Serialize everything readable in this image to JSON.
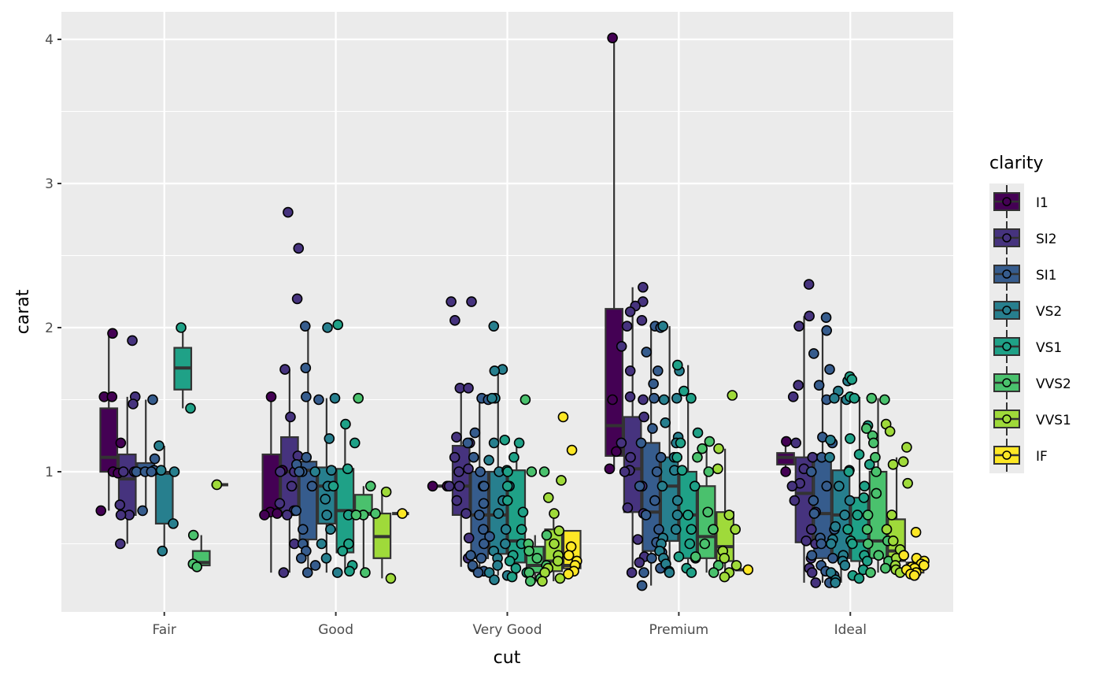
{
  "chart_data": {
    "type": "boxplot",
    "title": "",
    "xlabel": "cut",
    "ylabel": "carat",
    "ylim": [
      0.12,
      4.2
    ],
    "yticks": [
      1,
      2,
      3,
      4
    ],
    "ytick_labels": [
      "1",
      "2",
      "3",
      "4"
    ],
    "grid": true,
    "categories": [
      "Fair",
      "Good",
      "Very Good",
      "Premium",
      "Ideal"
    ],
    "legend": {
      "title": "clarity",
      "position": "right",
      "entries": [
        {
          "name": "I1",
          "color": "#440154"
        },
        {
          "name": "SI2",
          "color": "#46337E"
        },
        {
          "name": "SI1",
          "color": "#365C8D"
        },
        {
          "name": "VS2",
          "color": "#277F8E"
        },
        {
          "name": "VS1",
          "color": "#1FA187"
        },
        {
          "name": "VVS2",
          "color": "#4AC16D"
        },
        {
          "name": "VVS1",
          "color": "#9FDA3A"
        },
        {
          "name": "IF",
          "color": "#FDE725"
        }
      ]
    },
    "groups": [
      {
        "cut": "Fair",
        "boxes": [
          {
            "clarity": "I1",
            "stats": [
              0.73,
              1.0,
              1.1,
              1.44,
              1.96
            ],
            "points": [
              1.96,
              1.52,
              1.52,
              1.2,
              1.0,
              1.0,
              0.73,
              0.99
            ]
          },
          {
            "clarity": "SI2",
            "stats": [
              0.5,
              0.7,
              0.95,
              1.12,
              1.52
            ],
            "points": [
              1.91,
              1.52,
              1.47,
              1.0,
              1.0,
              0.77,
              0.7,
              0.7,
              0.5
            ]
          },
          {
            "clarity": "SI1",
            "stats": [
              0.73,
              1.0,
              1.02,
              1.06,
              1.5
            ],
            "points": [
              1.5,
              1.09,
              1.01,
              1.0,
              1.0,
              1.0,
              0.73
            ]
          },
          {
            "clarity": "VS2",
            "stats": [
              0.45,
              0.64,
              0.99,
              1.0,
              1.18
            ],
            "points": [
              1.18,
              1.01,
              1.0,
              0.64,
              0.45
            ]
          },
          {
            "clarity": "VS1",
            "stats": [
              1.44,
              1.57,
              1.72,
              1.86,
              2.0
            ],
            "points": [
              2.0,
              1.44
            ]
          },
          {
            "clarity": "VVS2",
            "stats": [
              0.33,
              0.35,
              0.37,
              0.45,
              0.56
            ],
            "points": [
              0.56,
              0.36,
              0.34
            ]
          },
          {
            "clarity": "VVS1",
            "stats": [
              0.91,
              0.91,
              0.91,
              0.91,
              0.91
            ],
            "points": [
              0.91
            ]
          }
        ]
      },
      {
        "cut": "Good",
        "boxes": [
          {
            "clarity": "I1",
            "stats": [
              0.3,
              0.71,
              0.72,
              1.12,
              1.51
            ],
            "points": [
              1.52,
              1.01,
              0.72,
              0.71,
              0.7
            ]
          },
          {
            "clarity": "SI2",
            "stats": [
              0.3,
              0.72,
              1.0,
              1.24,
              1.71
            ],
            "points": [
              2.8,
              2.55,
              2.2,
              1.71,
              1.38,
              1.11,
              1.0,
              1.0,
              0.9,
              0.78,
              0.73,
              0.7,
              0.5,
              0.3
            ]
          },
          {
            "clarity": "SI1",
            "stats": [
              0.3,
              0.53,
              1.01,
              1.07,
              2.01
            ],
            "points": [
              2.01,
              1.72,
              1.52,
              1.5,
              1.1,
              1.05,
              1.0,
              1.0,
              0.9,
              0.73,
              0.6,
              0.5,
              0.45,
              0.4,
              0.35,
              0.3
            ]
          },
          {
            "clarity": "VS2",
            "stats": [
              0.3,
              0.64,
              0.9,
              1.03,
              1.51
            ],
            "points": [
              2.0,
              1.51,
              1.23,
              1.01,
              1.0,
              0.9,
              0.81,
              0.7,
              0.6,
              0.5,
              0.4,
              0.3
            ]
          },
          {
            "clarity": "VS1",
            "stats": [
              0.3,
              0.44,
              0.73,
              1.02,
              1.33
            ],
            "points": [
              2.02,
              1.33,
              1.2,
              1.02,
              0.9,
              0.7,
              0.5,
              0.45,
              0.35,
              0.31
            ]
          },
          {
            "clarity": "VVS2",
            "stats": [
              0.31,
              0.7,
              0.71,
              0.84,
              0.9
            ],
            "points": [
              1.51,
              0.9,
              0.71,
              0.7,
              0.7,
              0.3
            ]
          },
          {
            "clarity": "VVS1",
            "stats": [
              0.26,
              0.4,
              0.55,
              0.71,
              0.86
            ],
            "points": [
              0.86,
              0.26
            ]
          },
          {
            "clarity": "IF",
            "stats": [
              0.71,
              0.71,
              0.71,
              0.71,
              0.71
            ],
            "points": [
              0.71
            ]
          }
        ]
      },
      {
        "cut": "Very Good",
        "boxes": [
          {
            "clarity": "I1",
            "stats": [
              0.9,
              0.9,
              0.9,
              0.9,
              0.9
            ],
            "points": [
              0.9,
              0.9
            ]
          },
          {
            "clarity": "SI2",
            "stats": [
              0.34,
              0.7,
              0.9,
              1.18,
              1.58
            ],
            "points": [
              2.18,
              2.18,
              2.05,
              1.58,
              1.58,
              1.24,
              1.2,
              1.1,
              1.02,
              1.0,
              0.9,
              0.9,
              0.8,
              0.71,
              0.54,
              0.4,
              0.34
            ]
          },
          {
            "clarity": "SI1",
            "stats": [
              0.3,
              0.4,
              0.7,
              1.0,
              1.51
            ],
            "points": [
              1.51,
              1.5,
              1.27,
              1.2,
              1.1,
              1.0,
              0.9,
              0.9,
              0.78,
              0.7,
              0.6,
              0.55,
              0.5,
              0.42,
              0.4,
              0.35,
              0.31,
              0.3
            ]
          },
          {
            "clarity": "VS2",
            "stats": [
              0.28,
              0.43,
              0.7,
              1.0,
              1.7
            ],
            "points": [
              2.01,
              1.71,
              1.7,
              1.51,
              1.51,
              1.2,
              1.08,
              1.0,
              0.9,
              0.8,
              0.71,
              0.6,
              0.5,
              0.45,
              0.4,
              0.35,
              0.3,
              0.28,
              0.25
            ]
          },
          {
            "clarity": "VS1",
            "stats": [
              0.27,
              0.37,
              0.52,
              1.01,
              1.22
            ],
            "points": [
              1.22,
              1.2,
              1.1,
              1.01,
              1.0,
              0.9,
              0.8,
              0.72,
              0.6,
              0.5,
              0.42,
              0.38,
              0.33,
              0.3,
              0.27
            ]
          },
          {
            "clarity": "VVS2",
            "stats": [
              0.23,
              0.3,
              0.35,
              0.48,
              0.56
            ],
            "points": [
              1.5,
              1.0,
              1.0,
              0.56,
              0.5,
              0.45,
              0.4,
              0.35,
              0.3,
              0.26,
              0.24
            ]
          },
          {
            "clarity": "VVS1",
            "stats": [
              0.24,
              0.31,
              0.38,
              0.6,
              0.71
            ],
            "points": [
              0.94,
              0.82,
              0.71,
              0.59,
              0.5,
              0.42,
              0.38,
              0.33,
              0.3,
              0.26,
              0.24
            ]
          },
          {
            "clarity": "IF",
            "stats": [
              0.31,
              0.33,
              0.35,
              0.59,
              0.59
            ],
            "points": [
              1.38,
              1.15,
              0.48,
              0.42,
              0.38,
              0.35,
              0.31,
              0.29
            ]
          }
        ]
      },
      {
        "cut": "Premium",
        "boxes": [
          {
            "clarity": "I1",
            "stats": [
              1.02,
              1.11,
              1.32,
              2.13,
              4.01
            ],
            "points": [
              4.01,
              1.5,
              1.14,
              1.02
            ]
          },
          {
            "clarity": "SI2",
            "stats": [
              0.3,
              0.72,
              1.02,
              1.38,
              2.28
            ],
            "points": [
              2.28,
              2.18,
              2.15,
              2.11,
              2.05,
              2.01,
              1.87,
              1.7,
              1.52,
              1.5,
              1.38,
              1.2,
              1.1,
              1.01,
              1.0,
              0.9,
              0.75,
              0.71,
              0.53,
              0.41,
              0.37,
              0.3
            ]
          },
          {
            "clarity": "SI1",
            "stats": [
              0.21,
              0.45,
              0.72,
              1.2,
              2.01
            ],
            "points": [
              2.01,
              2.0,
              1.83,
              1.7,
              1.61,
              1.51,
              1.3,
              1.2,
              1.1,
              1.0,
              0.9,
              0.8,
              0.7,
              0.6,
              0.51,
              0.44,
              0.4,
              0.33,
              0.3,
              0.21
            ]
          },
          {
            "clarity": "VS2",
            "stats": [
              0.3,
              0.52,
              0.9,
              1.1,
              2.01
            ],
            "points": [
              2.01,
              1.7,
              1.51,
              1.5,
              1.34,
              1.24,
              1.2,
              1.1,
              1.01,
              0.9,
              0.8,
              0.7,
              0.6,
              0.54,
              0.5,
              0.45,
              0.4,
              0.36,
              0.31,
              0.3
            ]
          },
          {
            "clarity": "VS1",
            "stats": [
              0.3,
              0.4,
              0.7,
              1.0,
              1.74
            ],
            "points": [
              1.74,
              1.56,
              1.51,
              1.27,
              1.2,
              1.1,
              1.01,
              0.9,
              0.7,
              0.6,
              0.5,
              0.41,
              0.4,
              0.33,
              0.3
            ]
          },
          {
            "clarity": "VVS2",
            "stats": [
              0.3,
              0.4,
              0.55,
              0.9,
              1.16
            ],
            "points": [
              1.21,
              1.16,
              1.1,
              1.0,
              0.72,
              0.6,
              0.5,
              0.41,
              0.35,
              0.3
            ]
          },
          {
            "clarity": "VVS1",
            "stats": [
              0.29,
              0.38,
              0.48,
              0.72,
              1.16
            ],
            "points": [
              1.53,
              1.16,
              1.02,
              0.7,
              0.6,
              0.45,
              0.4,
              0.35,
              0.3,
              0.27
            ]
          },
          {
            "clarity": "IF",
            "stats": [
              0.32,
              0.32,
              0.32,
              0.32,
              0.32
            ],
            "points": [
              0.32
            ]
          }
        ]
      },
      {
        "cut": "Ideal",
        "boxes": [
          {
            "clarity": "I1",
            "stats": [
              1.0,
              1.05,
              1.1,
              1.13,
              1.21
            ],
            "points": [
              1.21,
              1.0
            ]
          },
          {
            "clarity": "SI2",
            "stats": [
              0.23,
              0.51,
              0.85,
              1.1,
              2.08
            ],
            "points": [
              2.3,
              2.08,
              2.01,
              1.6,
              1.52,
              1.2,
              1.1,
              1.02,
              0.92,
              0.9,
              0.8,
              0.72,
              0.6,
              0.52,
              0.5,
              0.4,
              0.33,
              0.3,
              0.23
            ]
          },
          {
            "clarity": "SI1",
            "stats": [
              0.23,
              0.4,
              0.71,
              1.12,
              1.99
            ],
            "points": [
              2.07,
              1.98,
              1.82,
              1.71,
              1.6,
              1.5,
              1.24,
              1.2,
              1.1,
              1.0,
              0.9,
              0.8,
              0.71,
              0.6,
              0.54,
              0.5,
              0.42,
              0.4,
              0.35,
              0.31,
              0.28,
              0.23
            ]
          },
          {
            "clarity": "VS2",
            "stats": [
              0.23,
              0.4,
              0.7,
              1.01,
              1.52
            ],
            "points": [
              1.63,
              1.56,
              1.51,
              1.5,
              1.22,
              1.1,
              1.01,
              0.9,
              0.8,
              0.7,
              0.62,
              0.53,
              0.5,
              0.42,
              0.38,
              0.35,
              0.3,
              0.25,
              0.23
            ]
          },
          {
            "clarity": "VS1",
            "stats": [
              0.26,
              0.38,
              0.52,
              0.82,
              1.52
            ],
            "points": [
              1.66,
              1.64,
              1.52,
              1.51,
              1.32,
              1.23,
              1.12,
              1.05,
              1.0,
              0.9,
              0.82,
              0.7,
              0.6,
              0.52,
              0.5,
              0.42,
              0.38,
              0.32,
              0.28,
              0.26
            ]
          },
          {
            "clarity": "VVS2",
            "stats": [
              0.3,
              0.4,
              0.52,
              1.0,
              1.51
            ],
            "points": [
              1.51,
              1.5,
              1.3,
              1.25,
              1.2,
              1.1,
              1.0,
              0.85,
              0.7,
              0.6,
              0.52,
              0.5,
              0.42,
              0.38,
              0.33,
              0.3
            ]
          },
          {
            "clarity": "VVS1",
            "stats": [
              0.3,
              0.38,
              0.45,
              0.67,
              1.1
            ],
            "points": [
              1.33,
              1.28,
              1.17,
              1.07,
              1.05,
              0.92,
              0.7,
              0.6,
              0.52,
              0.46,
              0.4,
              0.35,
              0.32,
              0.3
            ]
          },
          {
            "clarity": "IF",
            "stats": [
              0.3,
              0.3,
              0.33,
              0.37,
              0.42
            ],
            "points": [
              0.58,
              0.42,
              0.4,
              0.38,
              0.36,
              0.35,
              0.34,
              0.33,
              0.32,
              0.3,
              0.29,
              0.28
            ]
          }
        ]
      }
    ]
  }
}
